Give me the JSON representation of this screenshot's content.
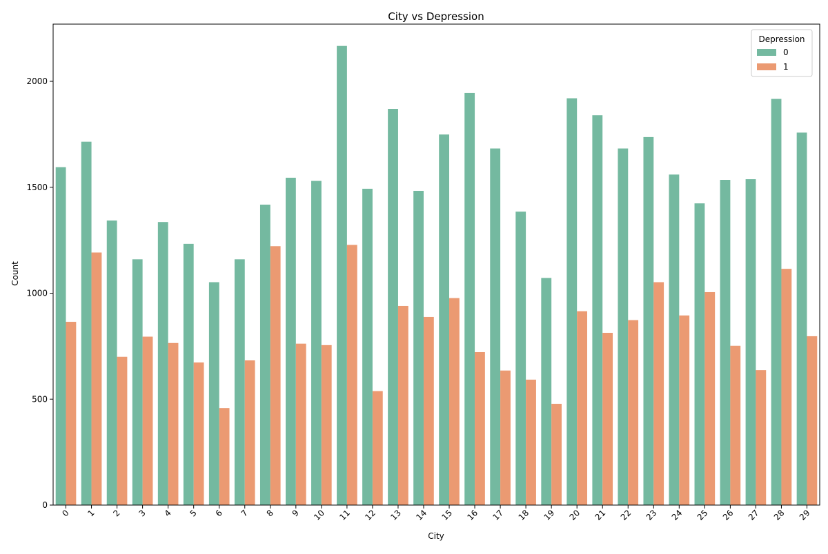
{
  "chart_data": {
    "type": "bar",
    "title": "City vs Depression",
    "xlabel": "City",
    "ylabel": "Count",
    "categories": [
      "0",
      "1",
      "2",
      "3",
      "4",
      "5",
      "6",
      "7",
      "8",
      "9",
      "10",
      "11",
      "12",
      "13",
      "14",
      "15",
      "16",
      "17",
      "18",
      "19",
      "20",
      "21",
      "22",
      "23",
      "24",
      "25",
      "26",
      "27",
      "28",
      "29"
    ],
    "ylim": [
      0,
      2270
    ],
    "yticks": [
      0,
      500,
      1000,
      1500,
      2000
    ],
    "legend": {
      "title": "Depression",
      "position": "top-right"
    },
    "grid": false,
    "series": [
      {
        "name": "0",
        "color": "#74b9a0",
        "values": [
          1595,
          1715,
          1343,
          1160,
          1336,
          1233,
          1052,
          1160,
          1418,
          1545,
          1530,
          2167,
          1493,
          1870,
          1483,
          1749,
          1945,
          1683,
          1385,
          1072,
          1920,
          1840,
          1683,
          1737,
          1560,
          1424,
          1535,
          1538,
          1917,
          1758
        ]
      },
      {
        "name": "1",
        "color": "#eb9a72",
        "values": [
          865,
          1192,
          700,
          795,
          765,
          673,
          458,
          683,
          1222,
          762,
          755,
          1228,
          538,
          940,
          888,
          977,
          722,
          635,
          592,
          478,
          915,
          813,
          873,
          1052,
          895,
          1005,
          752,
          637,
          1115,
          797
        ]
      }
    ]
  }
}
